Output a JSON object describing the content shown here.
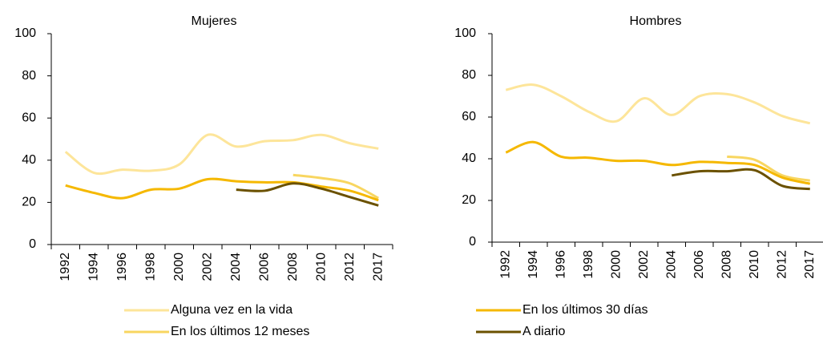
{
  "chart_data": [
    {
      "type": "line",
      "title": "Mujeres",
      "categories": [
        "1992",
        "1994",
        "1996",
        "1998",
        "2000",
        "2002",
        "2004",
        "2006",
        "2008",
        "2010",
        "2012",
        "2017"
      ],
      "ylim": [
        0,
        100
      ],
      "yticks": [
        0,
        20,
        40,
        60,
        80,
        100
      ],
      "series": [
        {
          "name": "Alguna vez en la vida",
          "color": "#fde59a",
          "values": [
            44,
            34,
            35.5,
            35,
            38,
            52,
            46.5,
            49,
            49.5,
            52,
            48,
            45.5
          ]
        },
        {
          "name": "En los últimos 12 meses",
          "color": "#f8d660",
          "values": [
            null,
            null,
            null,
            null,
            null,
            null,
            null,
            null,
            33,
            31.5,
            29,
            22
          ]
        },
        {
          "name": "En los últimos 30 días",
          "color": "#f5b800",
          "values": [
            28,
            24.5,
            22,
            26,
            26.5,
            31,
            30,
            29.5,
            29.5,
            27.5,
            25.5,
            21
          ]
        },
        {
          "name": "A diario",
          "color": "#6b5100",
          "values": [
            null,
            null,
            null,
            null,
            null,
            null,
            26,
            25.5,
            29,
            26.5,
            22.5,
            18.5
          ]
        }
      ]
    },
    {
      "type": "line",
      "title": "Hombres",
      "categories": [
        "1992",
        "1994",
        "1996",
        "1998",
        "2000",
        "2002",
        "2004",
        "2006",
        "2008",
        "2010",
        "2012",
        "2017"
      ],
      "ylim": [
        0,
        100
      ],
      "yticks": [
        0,
        20,
        40,
        60,
        80,
        100
      ],
      "series": [
        {
          "name": "Alguna vez en la vida",
          "color": "#fde59a",
          "values": [
            73,
            75.5,
            70,
            62.5,
            58,
            69,
            61,
            70,
            71,
            67,
            60.5,
            57
          ]
        },
        {
          "name": "En los últimos 12 meses",
          "color": "#f8d660",
          "values": [
            null,
            null,
            null,
            null,
            null,
            null,
            null,
            null,
            41,
            39.5,
            32,
            29.5
          ]
        },
        {
          "name": "En los últimos 30 días",
          "color": "#f5b800",
          "values": [
            43,
            48,
            41,
            40.5,
            39,
            39,
            37,
            38.5,
            38,
            37,
            31,
            28
          ]
        },
        {
          "name": "A diario",
          "color": "#6b5100",
          "values": [
            null,
            null,
            null,
            null,
            null,
            null,
            32,
            34,
            34,
            34.5,
            27,
            25.5
          ]
        }
      ]
    }
  ]
}
